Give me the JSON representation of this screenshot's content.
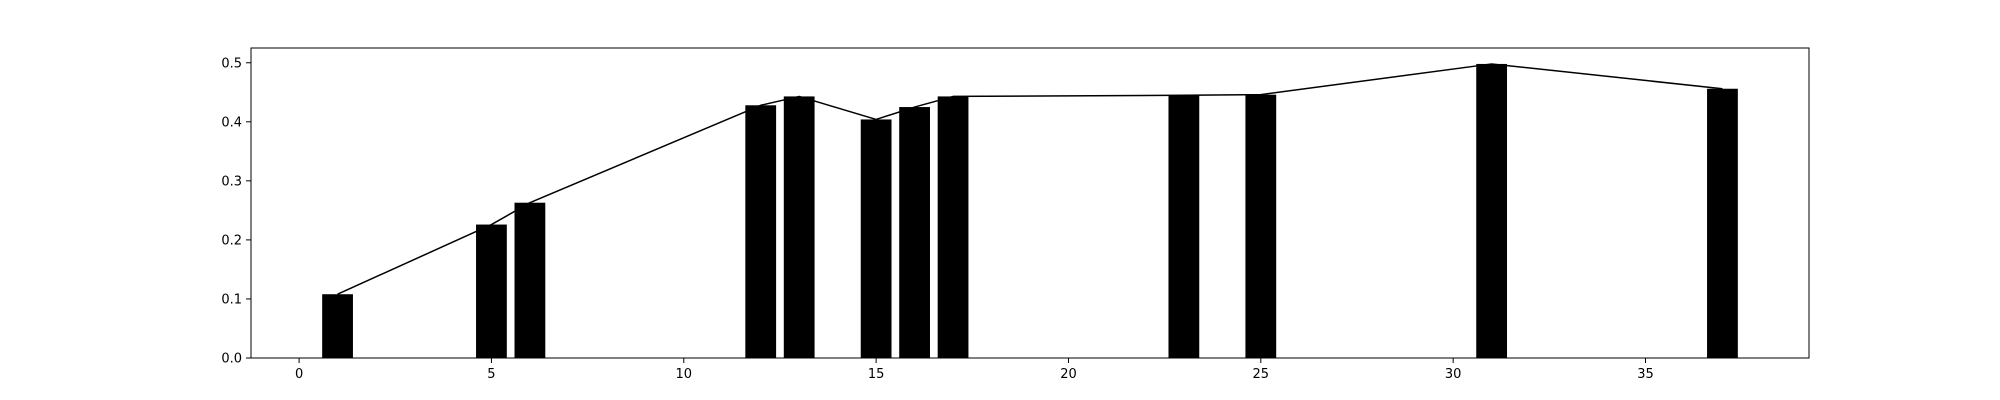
{
  "chart_data": {
    "type": "bar",
    "title": "",
    "xlabel": "",
    "ylabel": "",
    "xlim": [
      -1.25,
      39.25
    ],
    "ylim": [
      0,
      0.525
    ],
    "grid": false,
    "legend": "none",
    "x_ticks": [
      0,
      5,
      10,
      15,
      20,
      25,
      30,
      35
    ],
    "y_ticks": [
      0.0,
      0.1,
      0.2,
      0.3,
      0.4,
      0.5
    ],
    "y_tick_labels": [
      "0.0",
      "0.1",
      "0.2",
      "0.3",
      "0.4",
      "0.5"
    ],
    "bar_width": 0.8,
    "bar_color": "#000000",
    "line_color": "#000000",
    "series": [
      {
        "type": "bar",
        "x": [
          1,
          5,
          6,
          12,
          13,
          15,
          16,
          17,
          23,
          25,
          31,
          37
        ],
        "values": [
          0.108,
          0.226,
          0.263,
          0.428,
          0.443,
          0.404,
          0.425,
          0.443,
          0.445,
          0.446,
          0.498,
          0.456
        ]
      },
      {
        "type": "line",
        "x": [
          1,
          5,
          6,
          12,
          13,
          15,
          16,
          17,
          23,
          25,
          31,
          37
        ],
        "values": [
          0.108,
          0.226,
          0.263,
          0.428,
          0.443,
          0.404,
          0.425,
          0.443,
          0.445,
          0.446,
          0.498,
          0.456
        ]
      }
    ]
  }
}
